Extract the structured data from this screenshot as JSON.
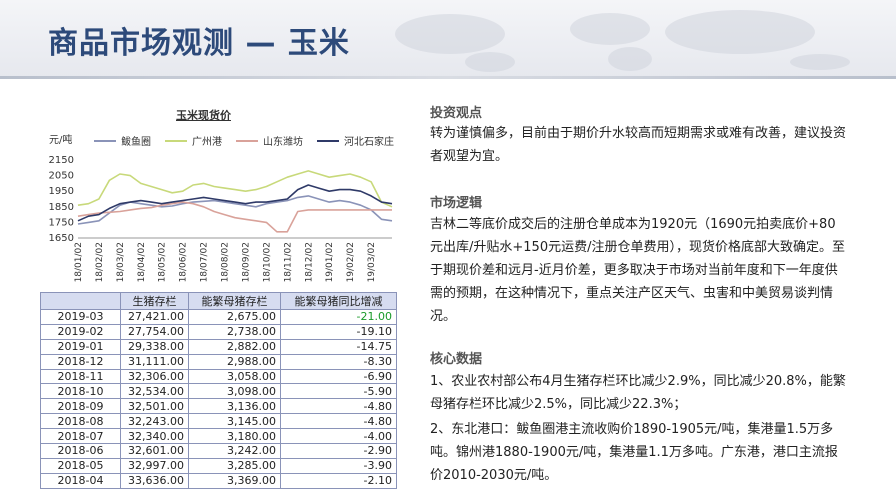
{
  "title": "商品市场观测 — 玉米",
  "chart": {
    "title": "玉米现货价",
    "unit": "元/吨"
  },
  "chart_data": {
    "type": "line",
    "title": "玉米现货价",
    "ylabel": "元/吨",
    "ylim": [
      1650,
      2150
    ],
    "yticks": [
      1650,
      1750,
      1850,
      1950,
      2050,
      2150
    ],
    "xticks": [
      "18/01/02",
      "18/02/02",
      "18/03/02",
      "18/04/02",
      "18/05/02",
      "18/06/02",
      "18/07/02",
      "18/08/02",
      "18/09/02",
      "18/10/02",
      "18/11/02",
      "18/12/02",
      "19/01/02",
      "19/02/02",
      "19/03/02"
    ],
    "x_month_index": [
      0,
      0.5,
      1,
      1.5,
      2,
      2.5,
      3,
      3.5,
      4,
      4.5,
      5,
      5.5,
      6,
      6.5,
      7,
      7.5,
      8,
      8.5,
      9,
      9.5,
      10,
      10.5,
      11,
      11.5,
      12,
      12.5,
      13,
      13.5,
      14,
      14.5,
      15
    ],
    "series": [
      {
        "name": "鲅鱼圈",
        "color": "#8a93b8",
        "values": [
          1740,
          1750,
          1760,
          1810,
          1860,
          1880,
          1870,
          1860,
          1850,
          1855,
          1870,
          1880,
          1885,
          1890,
          1880,
          1870,
          1860,
          1850,
          1870,
          1880,
          1890,
          1910,
          1920,
          1900,
          1880,
          1890,
          1880,
          1860,
          1830,
          1770,
          1760
        ]
      },
      {
        "name": "广州港",
        "color": "#c8d97a",
        "values": [
          1860,
          1870,
          1900,
          2020,
          2060,
          2050,
          2000,
          1980,
          1960,
          1940,
          1950,
          1990,
          2000,
          1980,
          1970,
          1960,
          1950,
          1960,
          1980,
          2010,
          2040,
          2060,
          2080,
          2060,
          2040,
          2050,
          2060,
          2040,
          2010,
          1880,
          1850
        ]
      },
      {
        "name": "山东潍坊",
        "color": "#d9a29a",
        "values": [
          1790,
          1800,
          1810,
          1815,
          1820,
          1830,
          1840,
          1845,
          1860,
          1870,
          1880,
          1870,
          1850,
          1820,
          1800,
          1780,
          1770,
          1760,
          1750,
          1690,
          1690,
          1820,
          1830,
          1830,
          1830,
          1830,
          1830,
          1830,
          1830,
          1830,
          1830
        ]
      },
      {
        "name": "河北石家庄",
        "color": "#2f3a68",
        "values": [
          1760,
          1790,
          1800,
          1840,
          1870,
          1880,
          1890,
          1880,
          1870,
          1880,
          1890,
          1900,
          1910,
          1900,
          1890,
          1880,
          1870,
          1880,
          1880,
          1890,
          1900,
          1960,
          1990,
          1970,
          1950,
          1960,
          1960,
          1950,
          1920,
          1880,
          1870
        ]
      }
    ]
  },
  "table": {
    "headers": [
      "",
      "生猪存栏",
      "能繁母猪存栏",
      "能繁母猪同比增减"
    ],
    "rows": [
      [
        "2019-03",
        "27,421.00",
        "2,675.00",
        "-21.00"
      ],
      [
        "2019-02",
        "27,754.00",
        "2,738.00",
        "-19.10"
      ],
      [
        "2019-01",
        "29,338.00",
        "2,882.00",
        "-14.75"
      ],
      [
        "2018-12",
        "31,111.00",
        "2,988.00",
        "-8.30"
      ],
      [
        "2018-11",
        "32,306.00",
        "3,058.00",
        "-6.90"
      ],
      [
        "2018-10",
        "32,534.00",
        "3,098.00",
        "-5.90"
      ],
      [
        "2018-09",
        "32,501.00",
        "3,136.00",
        "-4.80"
      ],
      [
        "2018-08",
        "32,243.00",
        "3,145.00",
        "-4.80"
      ],
      [
        "2018-07",
        "32,340.00",
        "3,180.00",
        "-4.00"
      ],
      [
        "2018-06",
        "32,601.00",
        "3,242.00",
        "-2.90"
      ],
      [
        "2018-05",
        "32,997.00",
        "3,285.00",
        "-3.90"
      ],
      [
        "2018-04",
        "33,636.00",
        "3,369.00",
        "-2.10"
      ]
    ]
  },
  "sections": {
    "view_head": "投资观点",
    "view_body": "转为谨慎偏多，目前由于期价升水较高而短期需求或难有改善，建议投资者观望为宜。",
    "logic_head": "市场逻辑",
    "logic_body": "吉林二等底价成交后的注册仓单成本为1920元（1690元拍卖底价+80元出库/升贴水+150元运费/注册仓单费用），现货价格底部大致确定。至于期现价差和远月-近月价差，更多取决于市场对当前年度和下一年度供需的预期，在这种情况下，重点关注产区天气、虫害和中美贸易谈判情况。",
    "data_head": "核心数据",
    "data_item1": "1、农业农村部公布4月生猪存栏环比减少2.9%，同比减少20.8%，能繁母猪存栏环比减少2.5%，同比减少22.3%；",
    "data_item2": "2、东北港口：鲅鱼圈港主流收购价1890-1905元/吨，集港量1.5万多吨。锦州港1880-1900元/吨，集港量1.1万多吨。广东港，港口主流报价2010-2030元/吨。"
  },
  "colors": {
    "title": "#2d4a7a",
    "table_header_bg": "#d6dcf0",
    "positive_green": "#1a9a2a"
  }
}
